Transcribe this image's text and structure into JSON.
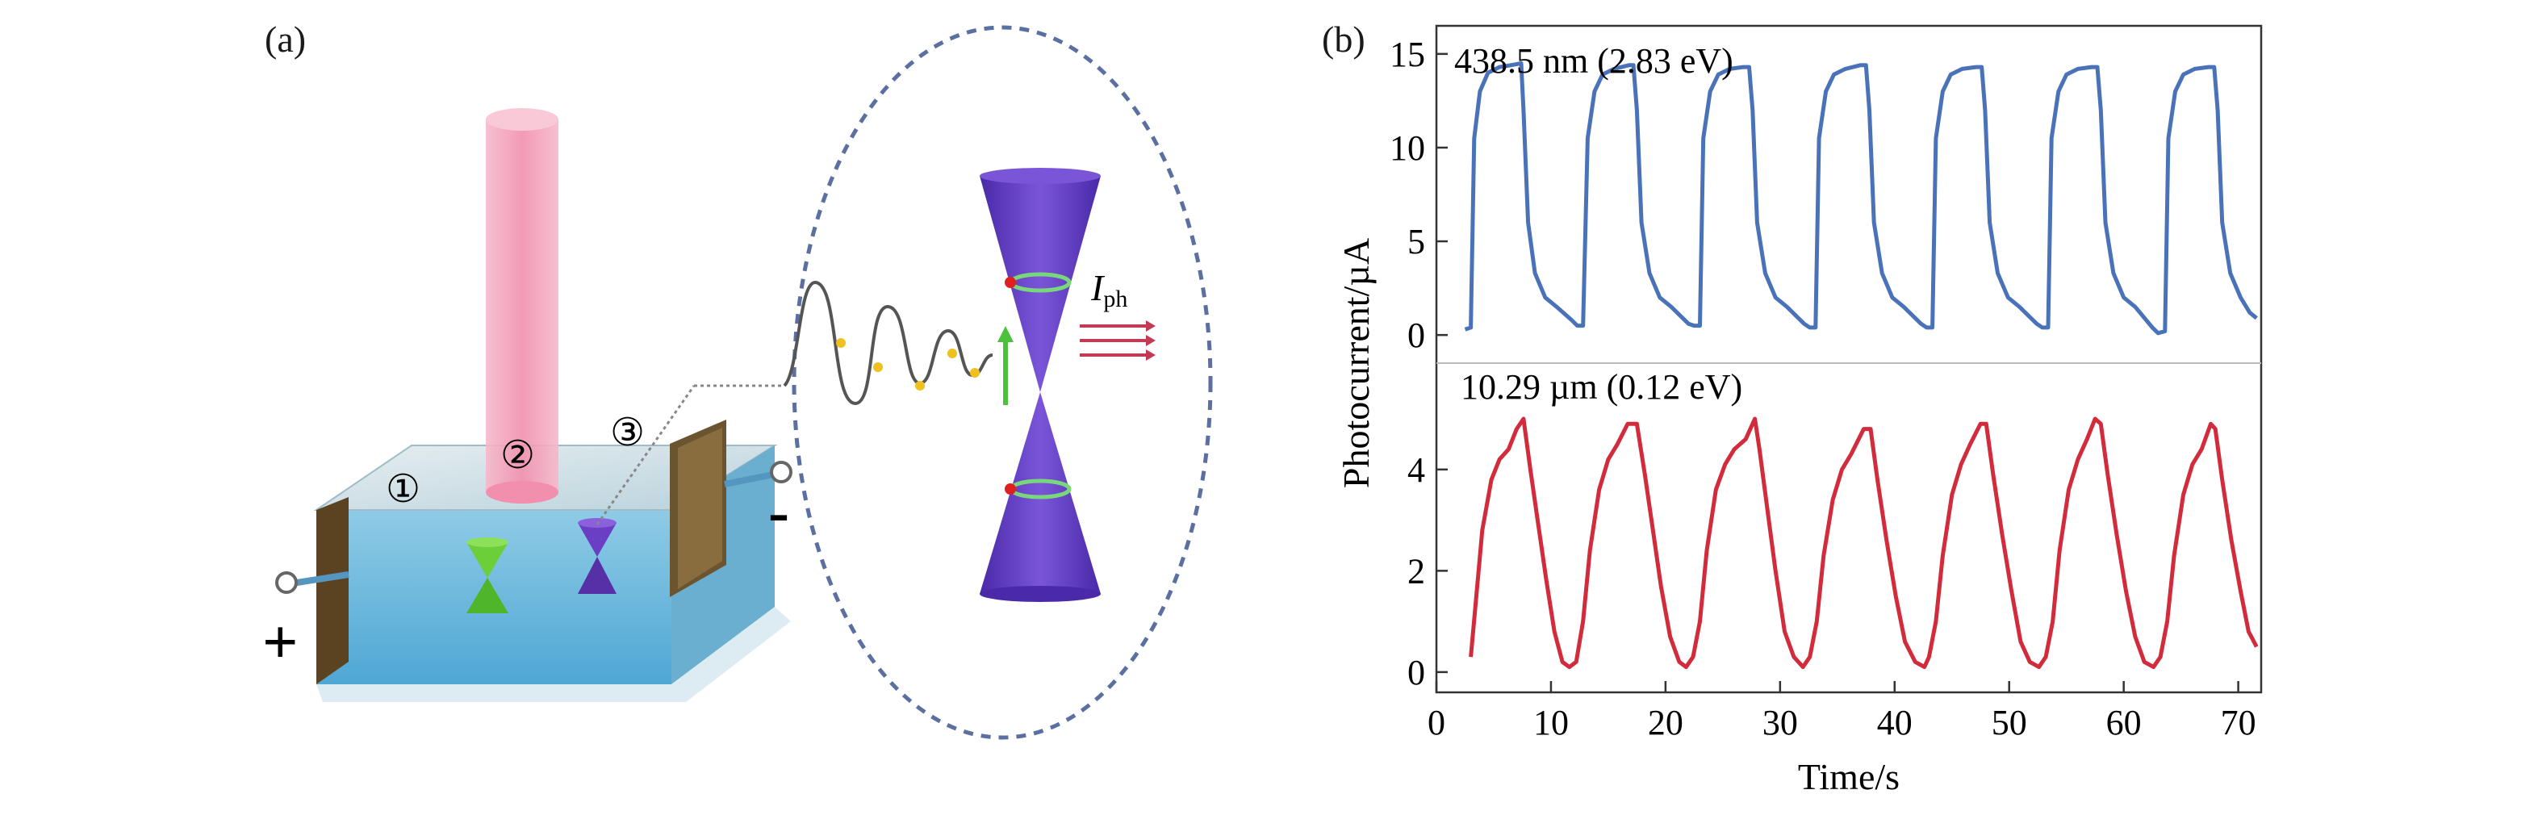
{
  "figure": {
    "panel_a": {
      "label": "(a)",
      "region_markers": [
        "①",
        "②",
        "③"
      ],
      "electrode_plus": "+",
      "electrode_minus": "-",
      "current_symbol": "I",
      "current_subscript": "ph"
    },
    "panel_b": {
      "label": "(b)",
      "top_annotation": "438.5 nm (2.83 eV)",
      "bottom_annotation": "10.29 µm (0.12 eV)"
    },
    "colors": {
      "blue_trace": "#4a72b8",
      "red_trace": "#d22b3c",
      "beam": "#f2a6bf",
      "cone": "#6a3cc4"
    }
  },
  "chart_data": [
    {
      "type": "line",
      "title": "",
      "xlabel": "Time/s",
      "ylabel": "Photocurrent/µA",
      "xlim": [
        0,
        72
      ],
      "ylim": [
        -1.5,
        16.5
      ],
      "x_ticks": [
        "0",
        "10",
        "20",
        "30",
        "40",
        "50",
        "60",
        "70"
      ],
      "y_ticks": [
        "0",
        "5",
        "10",
        "15"
      ],
      "series": [
        {
          "name": "438.5 nm (2.83 eV)",
          "color": "#4a72b8",
          "points": [
            [
              2.5,
              0.3
            ],
            [
              3.0,
              0.4
            ],
            [
              3.3,
              10.5
            ],
            [
              3.8,
              13.0
            ],
            [
              4.5,
              14.0
            ],
            [
              5.5,
              14.3
            ],
            [
              6.5,
              14.4
            ],
            [
              7.4,
              14.5
            ],
            [
              7.6,
              12.0
            ],
            [
              8.0,
              6.0
            ],
            [
              8.6,
              3.3
            ],
            [
              9.5,
              2.0
            ],
            [
              10.5,
              1.5
            ],
            [
              11.8,
              0.8
            ],
            [
              12.3,
              0.5
            ],
            [
              12.8,
              0.5
            ],
            [
              13.2,
              10.5
            ],
            [
              13.8,
              13.0
            ],
            [
              14.5,
              13.9
            ],
            [
              15.5,
              14.2
            ],
            [
              16.8,
              14.4
            ],
            [
              17.2,
              14.4
            ],
            [
              17.5,
              12.0
            ],
            [
              17.9,
              6.0
            ],
            [
              18.6,
              3.3
            ],
            [
              19.5,
              2.0
            ],
            [
              20.5,
              1.5
            ],
            [
              22.0,
              0.6
            ],
            [
              22.5,
              0.5
            ],
            [
              23.0,
              0.5
            ],
            [
              23.3,
              10.5
            ],
            [
              23.9,
              13.0
            ],
            [
              24.6,
              13.9
            ],
            [
              25.6,
              14.2
            ],
            [
              26.8,
              14.3
            ],
            [
              27.3,
              14.3
            ],
            [
              27.6,
              12.0
            ],
            [
              28.0,
              6.0
            ],
            [
              28.7,
              3.3
            ],
            [
              29.6,
              2.0
            ],
            [
              30.6,
              1.5
            ],
            [
              32.1,
              0.6
            ],
            [
              32.6,
              0.4
            ],
            [
              33.1,
              0.4
            ],
            [
              33.4,
              10.5
            ],
            [
              34.0,
              13.0
            ],
            [
              34.7,
              13.9
            ],
            [
              35.7,
              14.2
            ],
            [
              37.0,
              14.4
            ],
            [
              37.5,
              14.4
            ],
            [
              37.8,
              12.0
            ],
            [
              38.2,
              6.0
            ],
            [
              38.9,
              3.3
            ],
            [
              39.8,
              2.0
            ],
            [
              40.8,
              1.5
            ],
            [
              42.3,
              0.6
            ],
            [
              42.8,
              0.4
            ],
            [
              43.3,
              0.4
            ],
            [
              43.6,
              10.5
            ],
            [
              44.2,
              13.0
            ],
            [
              44.9,
              13.9
            ],
            [
              45.9,
              14.2
            ],
            [
              47.1,
              14.3
            ],
            [
              47.6,
              14.3
            ],
            [
              47.9,
              12.0
            ],
            [
              48.3,
              6.0
            ],
            [
              49.0,
              3.3
            ],
            [
              49.9,
              2.0
            ],
            [
              50.9,
              1.5
            ],
            [
              52.4,
              0.6
            ],
            [
              52.9,
              0.4
            ],
            [
              53.4,
              0.4
            ],
            [
              53.7,
              10.5
            ],
            [
              54.3,
              13.0
            ],
            [
              55.0,
              13.9
            ],
            [
              56.0,
              14.2
            ],
            [
              57.2,
              14.3
            ],
            [
              57.7,
              14.3
            ],
            [
              58.0,
              12.0
            ],
            [
              58.4,
              6.0
            ],
            [
              59.1,
              3.3
            ],
            [
              60.0,
              2.0
            ],
            [
              61.0,
              1.5
            ],
            [
              62.5,
              0.4
            ],
            [
              63.0,
              0.1
            ],
            [
              63.6,
              0.2
            ],
            [
              63.9,
              10.5
            ],
            [
              64.5,
              13.0
            ],
            [
              65.2,
              13.9
            ],
            [
              66.2,
              14.2
            ],
            [
              67.4,
              14.3
            ],
            [
              67.9,
              14.3
            ],
            [
              68.2,
              12.0
            ],
            [
              68.6,
              6.0
            ],
            [
              69.3,
              3.3
            ],
            [
              70.2,
              2.0
            ],
            [
              71.0,
              1.2
            ],
            [
              71.6,
              0.9
            ]
          ]
        }
      ]
    },
    {
      "type": "line",
      "title": "",
      "xlabel": "Time/s",
      "ylabel": "Photocurrent/µA",
      "xlim": [
        0,
        72
      ],
      "ylim": [
        -0.4,
        6.1
      ],
      "x_ticks": [
        "0",
        "10",
        "20",
        "30",
        "40",
        "50",
        "60",
        "70"
      ],
      "y_ticks": [
        "0",
        "2",
        "4"
      ],
      "series": [
        {
          "name": "10.29 µm (0.12 eV)",
          "color": "#d22b3c",
          "points": [
            [
              3.0,
              0.3
            ],
            [
              3.4,
              1.3
            ],
            [
              4.0,
              2.8
            ],
            [
              4.8,
              3.8
            ],
            [
              5.5,
              4.2
            ],
            [
              6.3,
              4.4
            ],
            [
              7.0,
              4.8
            ],
            [
              7.6,
              5.0
            ],
            [
              8.2,
              4.0
            ],
            [
              8.9,
              2.9
            ],
            [
              9.6,
              1.8
            ],
            [
              10.3,
              0.8
            ],
            [
              11.0,
              0.2
            ],
            [
              11.6,
              0.1
            ],
            [
              12.2,
              0.2
            ],
            [
              12.8,
              1.0
            ],
            [
              13.4,
              2.4
            ],
            [
              14.2,
              3.6
            ],
            [
              15.0,
              4.2
            ],
            [
              15.8,
              4.5
            ],
            [
              16.7,
              4.9
            ],
            [
              17.5,
              4.9
            ],
            [
              18.2,
              3.9
            ],
            [
              18.9,
              2.8
            ],
            [
              19.6,
              1.7
            ],
            [
              20.4,
              0.7
            ],
            [
              21.2,
              0.2
            ],
            [
              21.8,
              0.1
            ],
            [
              22.4,
              0.3
            ],
            [
              23.0,
              1.0
            ],
            [
              23.6,
              2.4
            ],
            [
              24.4,
              3.6
            ],
            [
              25.2,
              4.1
            ],
            [
              26.0,
              4.4
            ],
            [
              27.0,
              4.6
            ],
            [
              27.8,
              5.0
            ],
            [
              28.2,
              4.4
            ],
            [
              28.9,
              3.2
            ],
            [
              29.6,
              2.0
            ],
            [
              30.4,
              0.8
            ],
            [
              31.2,
              0.3
            ],
            [
              32.0,
              0.1
            ],
            [
              32.6,
              0.3
            ],
            [
              33.2,
              1.0
            ],
            [
              33.8,
              2.3
            ],
            [
              34.6,
              3.4
            ],
            [
              35.4,
              4.0
            ],
            [
              36.2,
              4.3
            ],
            [
              37.3,
              4.8
            ],
            [
              37.9,
              4.8
            ],
            [
              38.5,
              3.8
            ],
            [
              39.3,
              2.6
            ],
            [
              40.1,
              1.5
            ],
            [
              40.9,
              0.6
            ],
            [
              41.8,
              0.2
            ],
            [
              42.6,
              0.1
            ],
            [
              43.0,
              0.3
            ],
            [
              43.6,
              1.0
            ],
            [
              44.2,
              2.3
            ],
            [
              45.0,
              3.5
            ],
            [
              45.8,
              4.1
            ],
            [
              46.6,
              4.5
            ],
            [
              47.5,
              4.9
            ],
            [
              48.0,
              4.9
            ],
            [
              48.6,
              3.9
            ],
            [
              49.4,
              2.7
            ],
            [
              50.2,
              1.6
            ],
            [
              51.0,
              0.6
            ],
            [
              51.8,
              0.2
            ],
            [
              52.6,
              0.1
            ],
            [
              53.2,
              0.3
            ],
            [
              53.8,
              1.0
            ],
            [
              54.4,
              2.4
            ],
            [
              55.2,
              3.6
            ],
            [
              56.0,
              4.2
            ],
            [
              56.8,
              4.6
            ],
            [
              57.5,
              5.0
            ],
            [
              58.0,
              4.9
            ],
            [
              58.6,
              3.9
            ],
            [
              59.4,
              2.7
            ],
            [
              60.2,
              1.6
            ],
            [
              61.0,
              0.7
            ],
            [
              61.8,
              0.2
            ],
            [
              62.6,
              0.1
            ],
            [
              63.2,
              0.3
            ],
            [
              63.8,
              1.0
            ],
            [
              64.4,
              2.3
            ],
            [
              65.2,
              3.5
            ],
            [
              66.0,
              4.1
            ],
            [
              66.8,
              4.4
            ],
            [
              67.6,
              4.9
            ],
            [
              68.0,
              4.8
            ],
            [
              68.6,
              3.8
            ],
            [
              69.4,
              2.6
            ],
            [
              70.2,
              1.6
            ],
            [
              70.9,
              0.8
            ],
            [
              71.6,
              0.5
            ]
          ]
        }
      ]
    }
  ]
}
